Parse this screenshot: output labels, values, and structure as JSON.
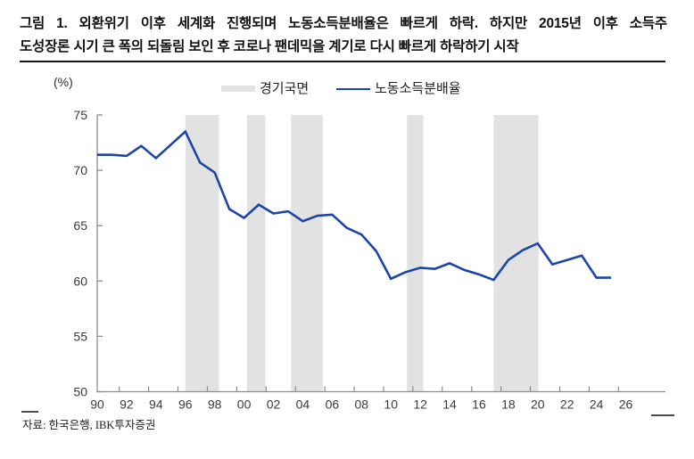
{
  "title": {
    "line1": "그림 1. 외환위기 이후 세계화 진행되며 노동소득분배율은 빠르게 하락. 하지만 2015년 이후 소득주",
    "line2": "도성장론 시기 큰 폭의 되돌림 보인 후 코로나 팬데믹을 계기로 다시 빠르게 하락하기 시작"
  },
  "legend": {
    "bands_label": "경기국면",
    "line_label": "노동소득분배율"
  },
  "axis": {
    "unit_label": "(%)"
  },
  "footer": {
    "source": "자료: 한국은행, IBK투자증권"
  },
  "colors": {
    "line": "#1c45a6",
    "band": "#e2e2e2",
    "axis": "#8c8c8c",
    "tick_text": "#3a3a3a"
  },
  "chart_data": {
    "type": "line",
    "title": "",
    "xlabel": "",
    "ylabel": "(%)",
    "legend_position": "top",
    "grid": false,
    "xlim": [
      1990,
      2028.7
    ],
    "ylim": [
      50,
      75
    ],
    "x": [
      1990,
      1991,
      1992,
      1993,
      1994,
      1995,
      1996,
      1997,
      1998,
      1999,
      2000,
      2001,
      2002,
      2003,
      2004,
      2005,
      2006,
      2007,
      2008,
      2009,
      2010,
      2011,
      2012,
      2013,
      2014,
      2015,
      2016,
      2017,
      2018,
      2019,
      2020,
      2021,
      2022,
      2023,
      2024,
      2025
    ],
    "series": [
      {
        "name": "노동소득분배율",
        "values": [
          71.4,
          71.4,
          71.3,
          72.2,
          71.1,
          72.3,
          73.5,
          70.7,
          69.8,
          66.5,
          65.7,
          66.9,
          66.1,
          66.3,
          65.4,
          65.9,
          66.0,
          64.8,
          64.2,
          62.7,
          60.2,
          60.8,
          61.2,
          61.1,
          61.6,
          61.0,
          60.6,
          60.1,
          61.9,
          62.8,
          63.4,
          61.5,
          61.9,
          62.3,
          60.3,
          60.3
        ]
      }
    ],
    "bands": {
      "name": "경기국면",
      "ranges": [
        [
          1996,
          1998.3
        ],
        [
          2000.2,
          2001.45
        ],
        [
          2003.2,
          2005.35
        ],
        [
          2011.1,
          2012.2
        ],
        [
          2017,
          2020.05
        ]
      ]
    },
    "y_ticks": [
      75,
      70,
      65,
      60,
      55,
      50
    ],
    "x_ticks": {
      "years": [
        1990,
        1992,
        1994,
        1996,
        1998,
        2000,
        2002,
        2004,
        2006,
        2008,
        2010,
        2012,
        2014,
        2016,
        2018,
        2020,
        2022,
        2024,
        2026
      ],
      "labels": [
        "90",
        "92",
        "94",
        "96",
        "98",
        "00",
        "02",
        "04",
        "06",
        "08",
        "10",
        "12",
        "14",
        "16",
        "18",
        "20",
        "22",
        "24",
        "26"
      ]
    }
  }
}
